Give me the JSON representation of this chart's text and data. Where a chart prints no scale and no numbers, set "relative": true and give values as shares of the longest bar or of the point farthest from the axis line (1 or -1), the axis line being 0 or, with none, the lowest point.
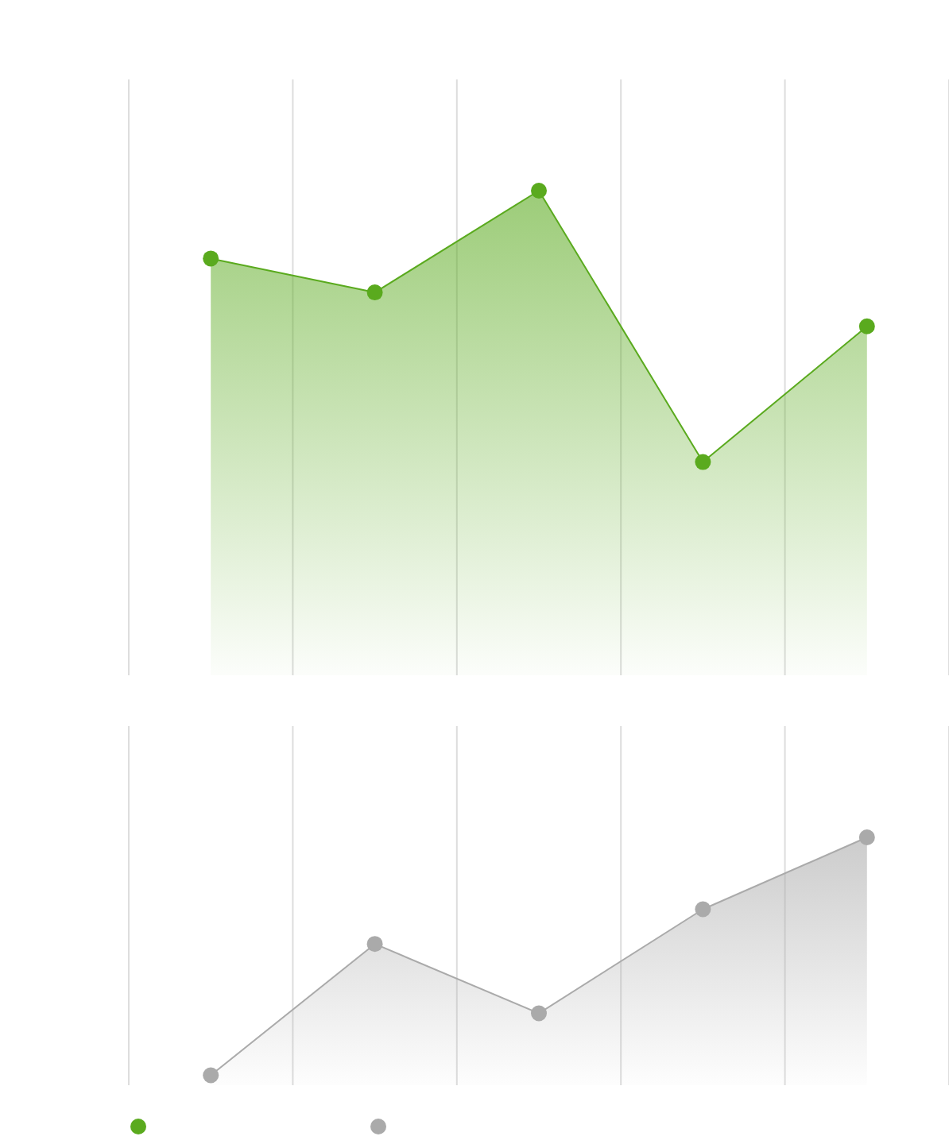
{
  "chart_data": [
    {
      "type": "area",
      "relative": true,
      "categories": [
        null,
        null,
        null,
        null,
        null
      ],
      "grid": "x",
      "marker": "circle",
      "series": [
        {
          "color": "#5aaa1e",
          "values": [
            0.86,
            0.79,
            1,
            0.44,
            0.72
          ]
        }
      ]
    },
    {
      "type": "area",
      "relative": true,
      "categories": [
        null,
        null,
        null,
        null,
        null
      ],
      "grid": "x",
      "marker": "circle",
      "series": [
        {
          "color": "#aaaaaa",
          "values": [
            0.04,
            0.57,
            0.29,
            0.71,
            1
          ]
        }
      ]
    }
  ]
}
